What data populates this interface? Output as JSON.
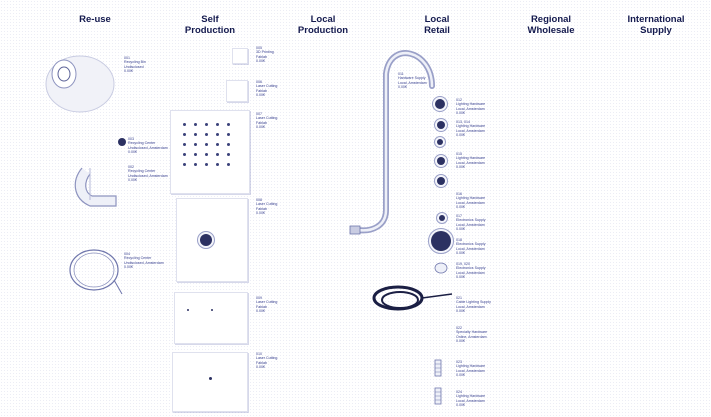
{
  "columns": [
    {
      "title": "Re-use"
    },
    {
      "title": "Self\nProduction"
    },
    {
      "title": "Local\nProduction"
    },
    {
      "title": "Local\nRetail"
    },
    {
      "title": "Regional\nWholesale"
    },
    {
      "title": "International\nSupply"
    }
  ],
  "colors": {
    "ink": "#1a1f5c",
    "dither": "#4650a0",
    "background": "#ffffff"
  }
}
